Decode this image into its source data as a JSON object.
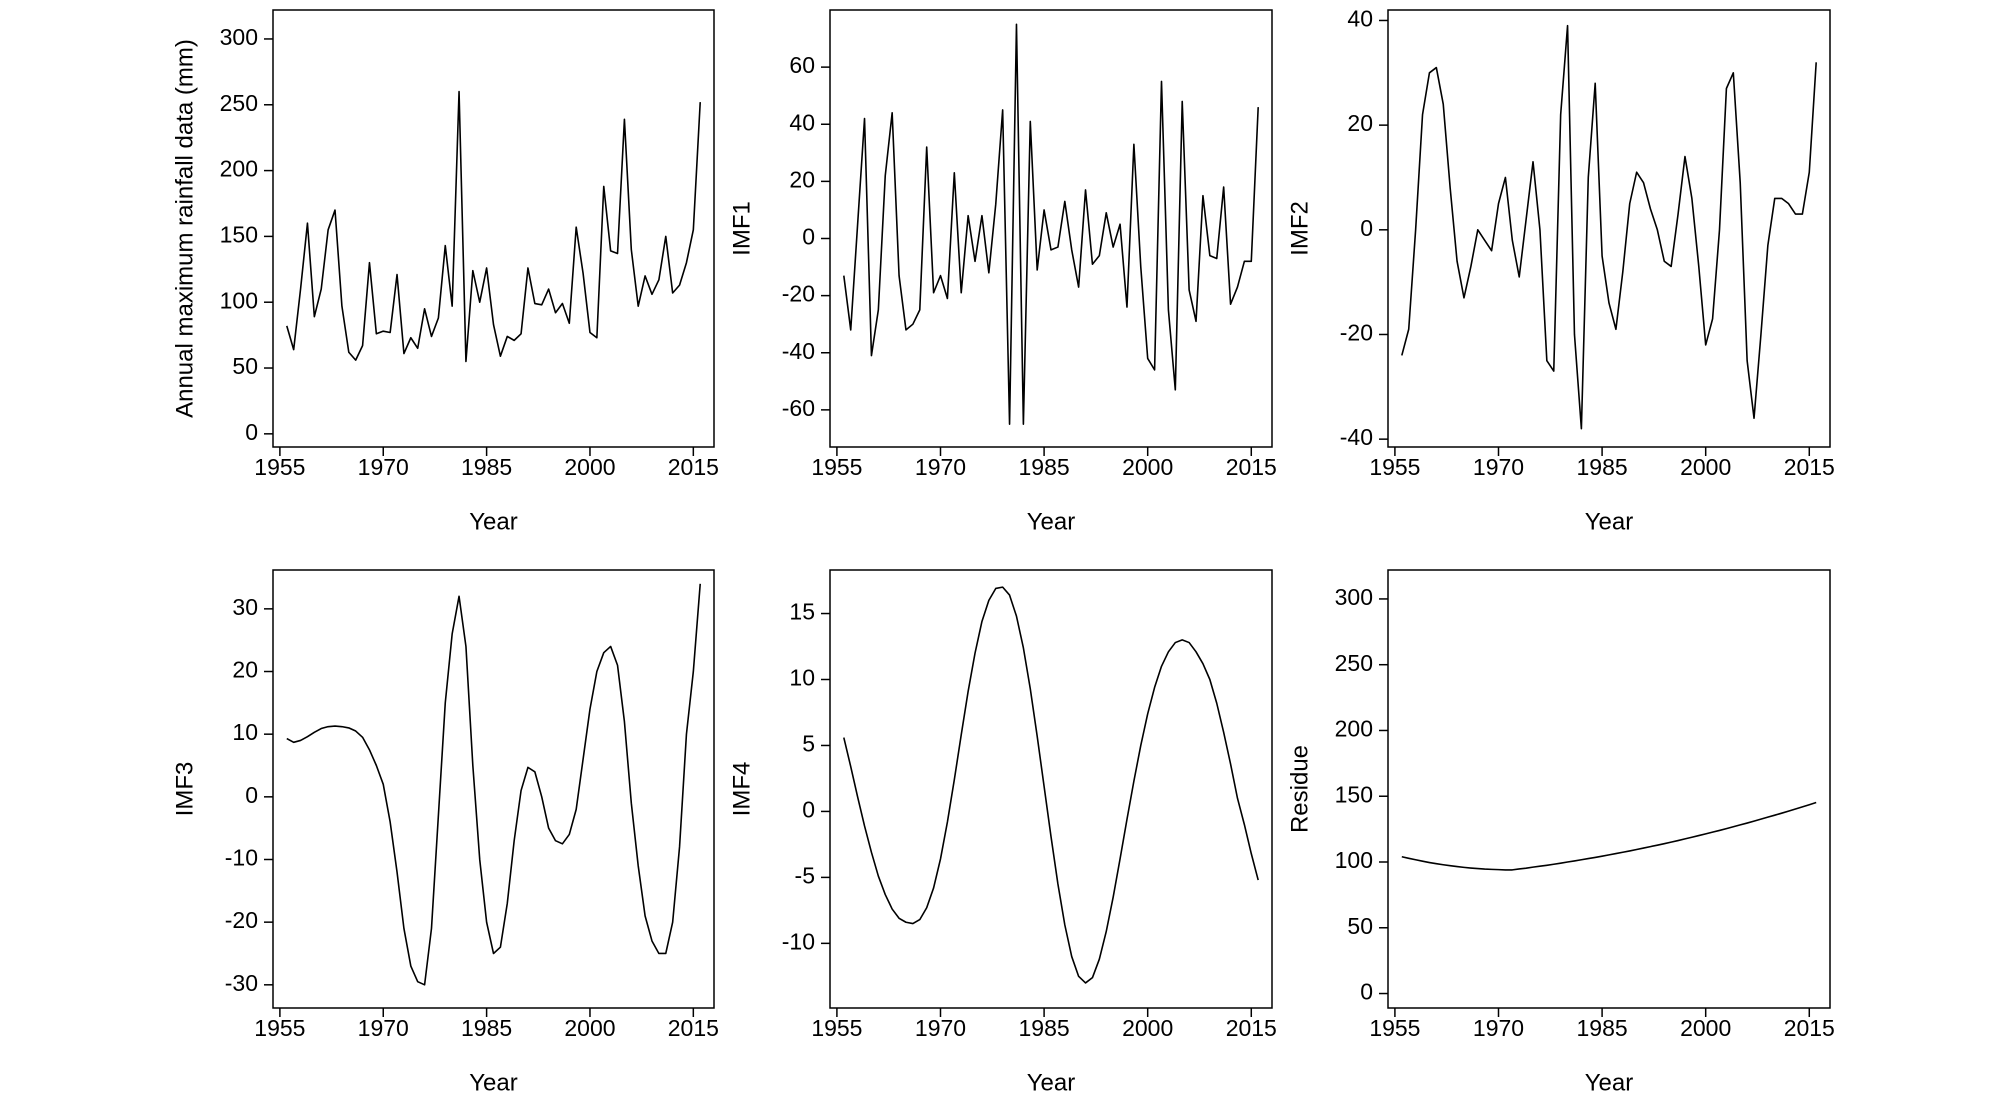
{
  "chart_data": [
    {
      "type": "line",
      "ylabel": "Annual maximum rainfall data (mm)",
      "xlabel": "Year",
      "color": "#000000",
      "x": [
        1956,
        1957,
        1958,
        1959,
        1960,
        1961,
        1962,
        1963,
        1964,
        1965,
        1966,
        1967,
        1968,
        1969,
        1970,
        1971,
        1972,
        1973,
        1974,
        1975,
        1976,
        1977,
        1978,
        1979,
        1980,
        1981,
        1982,
        1983,
        1984,
        1985,
        1986,
        1987,
        1988,
        1989,
        1990,
        1991,
        1992,
        1993,
        1994,
        1995,
        1996,
        1997,
        1998,
        1999,
        2000,
        2001,
        2002,
        2003,
        2004,
        2005,
        2006,
        2007,
        2008,
        2009,
        2010,
        2011,
        2012,
        2013,
        2014,
        2015,
        2016
      ],
      "values": [
        82,
        64,
        110,
        160,
        89,
        110,
        155,
        170,
        97,
        62,
        56,
        67,
        130,
        76,
        78,
        77,
        121,
        61,
        73,
        65,
        95,
        74,
        88,
        143,
        97,
        260,
        55,
        124,
        100,
        126,
        83,
        59,
        74,
        71,
        76,
        126,
        99,
        98,
        110,
        92,
        99,
        84,
        157,
        122,
        77,
        73,
        188,
        139,
        137,
        239,
        140,
        97,
        120,
        106,
        117,
        150,
        107,
        113,
        130,
        155,
        252
      ],
      "xlim": [
        1954,
        2018
      ],
      "ylim": [
        -10,
        322
      ],
      "xticks": [
        1955,
        1970,
        1985,
        2000,
        2015
      ],
      "yticks": [
        0,
        50,
        100,
        150,
        200,
        250,
        300
      ]
    },
    {
      "type": "line",
      "ylabel": "IMF1",
      "xlabel": "Year",
      "color": "#000000",
      "x": [
        1956,
        1957,
        1958,
        1959,
        1960,
        1961,
        1962,
        1963,
        1964,
        1965,
        1966,
        1967,
        1968,
        1969,
        1970,
        1971,
        1972,
        1973,
        1974,
        1975,
        1976,
        1977,
        1978,
        1979,
        1980,
        1981,
        1982,
        1983,
        1984,
        1985,
        1986,
        1987,
        1988,
        1989,
        1990,
        1991,
        1992,
        1993,
        1994,
        1995,
        1996,
        1997,
        1998,
        1999,
        2000,
        2001,
        2002,
        2003,
        2004,
        2005,
        2006,
        2007,
        2008,
        2009,
        2010,
        2011,
        2012,
        2013,
        2014,
        2015,
        2016
      ],
      "values": [
        -13,
        -32,
        5,
        42,
        -41,
        -25,
        22,
        44,
        -13,
        -32,
        -30,
        -25,
        32,
        -19,
        -13,
        -21,
        23,
        -19,
        8,
        -8,
        8,
        -12,
        12,
        45,
        -65,
        75,
        -65,
        41,
        -11,
        10,
        -4,
        -3,
        13,
        -4,
        -17,
        17,
        -9,
        -6,
        9,
        -3,
        5,
        -24,
        33,
        -10,
        -42,
        -46,
        55,
        -25,
        -53,
        48,
        -18,
        -29,
        15,
        -6,
        -7,
        18,
        -23,
        -17,
        -8,
        -8,
        46
      ],
      "xlim": [
        1954,
        2018
      ],
      "ylim": [
        -73,
        80
      ],
      "xticks": [
        1955,
        1970,
        1985,
        2000,
        2015
      ],
      "yticks": [
        -60,
        -40,
        -20,
        0,
        20,
        40,
        60
      ]
    },
    {
      "type": "line",
      "ylabel": "IMF2",
      "xlabel": "Year",
      "color": "#000000",
      "x": [
        1956,
        1957,
        1958,
        1959,
        1960,
        1961,
        1962,
        1963,
        1964,
        1965,
        1966,
        1967,
        1968,
        1969,
        1970,
        1971,
        1972,
        1973,
        1974,
        1975,
        1976,
        1977,
        1978,
        1979,
        1980,
        1981,
        1982,
        1983,
        1984,
        1985,
        1986,
        1987,
        1988,
        1989,
        1990,
        1991,
        1992,
        1993,
        1994,
        1995,
        1996,
        1997,
        1998,
        1999,
        2000,
        2001,
        2002,
        2003,
        2004,
        2005,
        2006,
        2007,
        2008,
        2009,
        2010,
        2011,
        2012,
        2013,
        2014,
        2015,
        2016
      ],
      "values": [
        -24,
        -19,
        0,
        22,
        30,
        31,
        24,
        8,
        -6,
        -13,
        -7,
        0,
        -2,
        -4,
        5,
        10,
        -2,
        -9,
        2,
        13,
        0,
        -25,
        -27,
        22,
        39,
        -20,
        -38,
        10,
        28,
        -5,
        -14,
        -19,
        -8,
        5,
        11,
        9,
        4,
        0,
        -6,
        -7,
        3,
        14,
        6,
        -7,
        -22,
        -17,
        0,
        27,
        30,
        9,
        -25,
        -36,
        -20,
        -3,
        6,
        6,
        5,
        3,
        3,
        11,
        32
      ],
      "xlim": [
        1954,
        2018
      ],
      "ylim": [
        -41.5,
        42
      ],
      "xticks": [
        1955,
        1970,
        1985,
        2000,
        2015
      ],
      "yticks": [
        -40,
        -20,
        0,
        20,
        40
      ]
    },
    {
      "type": "line",
      "ylabel": "IMF3",
      "xlabel": "Year",
      "color": "#000000",
      "x": [
        1956,
        1957,
        1958,
        1959,
        1960,
        1961,
        1962,
        1963,
        1964,
        1965,
        1966,
        1967,
        1968,
        1969,
        1970,
        1971,
        1972,
        1973,
        1974,
        1975,
        1976,
        1977,
        1978,
        1979,
        1980,
        1981,
        1982,
        1983,
        1984,
        1985,
        1986,
        1987,
        1988,
        1989,
        1990,
        1991,
        1992,
        1993,
        1994,
        1995,
        1996,
        1997,
        1998,
        1999,
        2000,
        2001,
        2002,
        2003,
        2004,
        2005,
        2006,
        2007,
        2008,
        2009,
        2010,
        2011,
        2012,
        2013,
        2014,
        2015,
        2016
      ],
      "values": [
        9.3,
        8.7,
        9.0,
        9.6,
        10.3,
        10.9,
        11.2,
        11.3,
        11.2,
        11.0,
        10.5,
        9.5,
        7.5,
        5,
        2,
        -4,
        -12,
        -21,
        -27,
        -29.5,
        -30,
        -21,
        -3,
        15,
        26,
        32,
        24,
        5,
        -10,
        -20,
        -25,
        -24,
        -17,
        -7,
        1,
        4.7,
        4,
        0,
        -5,
        -7,
        -7.5,
        -6,
        -2,
        6,
        14,
        20,
        23,
        24,
        21,
        12,
        -1,
        -11,
        -19,
        -23,
        -25,
        -25,
        -20,
        -8,
        10,
        20,
        34
      ],
      "xlim": [
        1954,
        2018
      ],
      "ylim": [
        -33.7,
        36.2
      ],
      "xticks": [
        1955,
        1970,
        1985,
        2000,
        2015
      ],
      "yticks": [
        -30,
        -20,
        -10,
        0,
        10,
        20,
        30
      ]
    },
    {
      "type": "line",
      "ylabel": "IMF4",
      "xlabel": "Year",
      "color": "#000000",
      "x": [
        1956,
        1957,
        1958,
        1959,
        1960,
        1961,
        1962,
        1963,
        1964,
        1965,
        1966,
        1967,
        1968,
        1969,
        1970,
        1971,
        1972,
        1973,
        1974,
        1975,
        1976,
        1977,
        1978,
        1979,
        1980,
        1981,
        1982,
        1983,
        1984,
        1985,
        1986,
        1987,
        1988,
        1989,
        1990,
        1991,
        1992,
        1993,
        1994,
        1995,
        1996,
        1997,
        1998,
        1999,
        2000,
        2001,
        2002,
        2003,
        2004,
        2005,
        2006,
        2007,
        2008,
        2009,
        2010,
        2011,
        2012,
        2013,
        2014,
        2015,
        2016
      ],
      "values": [
        5.6,
        3.4,
        1.1,
        -1.1,
        -3.1,
        -4.9,
        -6.3,
        -7.4,
        -8.1,
        -8.4,
        -8.5,
        -8.2,
        -7.3,
        -5.8,
        -3.6,
        -0.8,
        2.4,
        5.8,
        9.1,
        12.0,
        14.4,
        16.0,
        16.9,
        17.0,
        16.4,
        14.8,
        12.4,
        9.3,
        5.7,
        1.9,
        -1.9,
        -5.5,
        -8.6,
        -11.0,
        -12.5,
        -13.0,
        -12.6,
        -11.2,
        -9.1,
        -6.5,
        -3.6,
        -0.6,
        2.3,
        5.0,
        7.4,
        9.4,
        11.0,
        12.1,
        12.8,
        13.0,
        12.8,
        12.1,
        11.2,
        10.0,
        8.2,
        6.0,
        3.6,
        1.0,
        -1.0,
        -3.2,
        -5.2
      ],
      "xlim": [
        1954,
        2018
      ],
      "ylim": [
        -14.9,
        18.3
      ],
      "xticks": [
        1955,
        1970,
        1985,
        2000,
        2015
      ],
      "yticks": [
        -10,
        -5,
        0,
        5,
        10,
        15
      ]
    },
    {
      "type": "line",
      "ylabel": "Residue",
      "xlabel": "Year",
      "color": "#000000",
      "x": [
        1956,
        1957,
        1958,
        1959,
        1960,
        1961,
        1962,
        1963,
        1964,
        1965,
        1966,
        1967,
        1968,
        1969,
        1970,
        1971,
        1972,
        1973,
        1974,
        1975,
        1976,
        1977,
        1978,
        1979,
        1980,
        1981,
        1982,
        1983,
        1984,
        1985,
        1986,
        1987,
        1988,
        1989,
        1990,
        1991,
        1992,
        1993,
        1994,
        1995,
        1996,
        1997,
        1998,
        1999,
        2000,
        2001,
        2002,
        2003,
        2004,
        2005,
        2006,
        2007,
        2008,
        2009,
        2010,
        2011,
        2012,
        2013,
        2014,
        2015,
        2016
      ],
      "values": [
        104,
        102.8,
        101.7,
        100.6,
        99.6,
        98.7,
        97.9,
        97.2,
        96.5,
        95.9,
        95.4,
        95.0,
        94.6,
        94.4,
        94.2,
        94.0,
        94.0,
        94.7,
        95.3,
        96.1,
        96.8,
        97.5,
        98.3,
        99.1,
        100.0,
        100.8,
        101.7,
        102.6,
        103.5,
        104.4,
        105.4,
        106.4,
        107.4,
        108.4,
        109.5,
        110.6,
        111.7,
        112.8,
        113.9,
        115.1,
        116.3,
        117.6,
        118.8,
        120.1,
        121.4,
        122.7,
        124.0,
        125.4,
        126.8,
        128.2,
        129.6,
        131.1,
        132.6,
        134.1,
        135.6,
        137.1,
        138.7,
        140.3,
        141.9,
        143.5,
        145.2
      ],
      "xlim": [
        1954,
        2018
      ],
      "ylim": [
        -11,
        322
      ],
      "xticks": [
        1955,
        1970,
        1985,
        2000,
        2015
      ],
      "yticks": [
        0,
        50,
        100,
        150,
        200,
        250,
        300
      ]
    }
  ]
}
